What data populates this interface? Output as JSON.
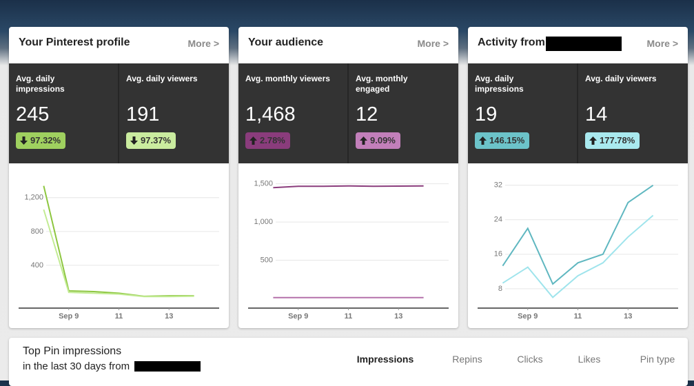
{
  "cards": [
    {
      "title": "Your Pinterest profile",
      "more": "More >",
      "stats": [
        {
          "label": "Avg. daily impressions",
          "value": "245",
          "change": "97.32%",
          "direction": "down",
          "color": "#9fd05f"
        },
        {
          "label": "Avg. daily viewers",
          "value": "191",
          "change": "97.37%",
          "direction": "down",
          "color": "#caec9f"
        }
      ]
    },
    {
      "title": "Your audience",
      "more": "More >",
      "stats": [
        {
          "label": "Avg. monthly viewers",
          "value": "1,468",
          "change": "2.78%",
          "direction": "up",
          "color": "#8a3c7c"
        },
        {
          "label": "Avg. monthly engaged",
          "value": "12",
          "change": "9.09%",
          "direction": "up",
          "color": "#c27fba"
        }
      ]
    },
    {
      "title": "Activity from",
      "more": "More >",
      "redacted": true,
      "stats": [
        {
          "label": "Avg. daily impressions",
          "value": "19",
          "change": "146.15%",
          "direction": "up",
          "color": "#6cc3c9"
        },
        {
          "label": "Avg. daily viewers",
          "value": "14",
          "change": "177.78%",
          "direction": "up",
          "color": "#a9e9ef"
        }
      ]
    }
  ],
  "chart_data": [
    {
      "type": "line",
      "x": [
        8,
        9,
        10,
        11,
        12,
        13,
        14
      ],
      "xlim": [
        7,
        15
      ],
      "xticks": [
        {
          "value": 9,
          "label": "Sep 9"
        },
        11,
        13
      ],
      "ylim": [
        -106,
        1500
      ],
      "yticks": [
        {
          "value": 400,
          "label": "400"
        },
        {
          "value": 800,
          "label": "800"
        },
        {
          "value": 1200,
          "label": "1,200"
        }
      ],
      "grid": true,
      "series": [
        {
          "name": "Avg. daily impressions",
          "color": "#8dc63f",
          "values": [
            1340,
            98,
            90,
            70,
            33,
            40,
            40
          ]
        },
        {
          "name": "Avg. daily viewers",
          "color": "#c2eb93",
          "values": [
            1060,
            80,
            70,
            60,
            30,
            30,
            35
          ]
        }
      ]
    },
    {
      "type": "line",
      "x": [
        8,
        9,
        10,
        11,
        12,
        13,
        14
      ],
      "xlim": [
        7,
        15
      ],
      "xticks": [
        {
          "value": 9,
          "label": "Sep 9"
        },
        11,
        13
      ],
      "ylim": [
        -126,
        1650
      ],
      "yticks": [
        {
          "value": 500,
          "label": "500"
        },
        {
          "value": 1000,
          "label": "1,000"
        },
        {
          "value": 1500,
          "label": "1,500"
        }
      ],
      "grid": true,
      "series": [
        {
          "name": "Avg. monthly viewers",
          "color": "#8a3c7c",
          "values": [
            1450,
            1468,
            1468,
            1472,
            1468,
            1470,
            1472
          ]
        },
        {
          "name": "Avg. monthly engaged",
          "color": "#b471aa",
          "values": [
            12,
            12,
            12,
            12,
            12,
            12,
            12
          ]
        }
      ]
    },
    {
      "type": "line",
      "x": [
        8,
        9,
        10,
        11,
        12,
        13,
        14
      ],
      "xlim": [
        7,
        15
      ],
      "xticks": [
        {
          "value": 9,
          "label": "Sep 9"
        },
        11,
        13
      ],
      "ylim": [
        3.5,
        35
      ],
      "yticks": [
        8,
        16,
        24,
        32
      ],
      "grid": true,
      "series": [
        {
          "name": "Avg. daily impressions",
          "color": "#5fb7c0",
          "values": [
            13.3,
            22,
            9.1,
            14,
            16,
            28,
            32
          ]
        },
        {
          "name": "Avg. daily viewers",
          "color": "#9fe4ec",
          "values": [
            9.3,
            13,
            6,
            11,
            14,
            20,
            25
          ]
        }
      ]
    }
  ],
  "bottom": {
    "title": "Top Pin impressions",
    "subtitle": "in the last 30 days from",
    "tabs": [
      "Impressions",
      "Repins",
      "Clicks",
      "Likes",
      "Pin type"
    ],
    "active": 0
  }
}
